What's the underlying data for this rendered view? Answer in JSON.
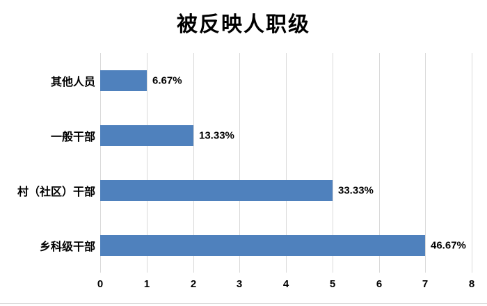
{
  "title": "被反映人职级",
  "chart_data": {
    "type": "bar",
    "orientation": "horizontal",
    "title": "被反映人职级",
    "categories": [
      "其他人员",
      "一般干部",
      "村（社区）干部",
      "乡科级干部"
    ],
    "values": [
      1,
      2,
      5,
      7
    ],
    "data_labels": [
      "6.67%",
      "13.33%",
      "33.33%",
      "46.67%"
    ],
    "x_ticks": [
      "0",
      "1",
      "2",
      "3",
      "4",
      "5",
      "6",
      "7",
      "8"
    ],
    "xlim": [
      0,
      8
    ],
    "xlabel": "",
    "ylabel": "",
    "grid": "vertical",
    "legend": "none",
    "bar_color": "#4F81BD",
    "gridline_color": "#D9D9D9",
    "border_color": "#D9D9D9",
    "text_color": "#000000"
  }
}
